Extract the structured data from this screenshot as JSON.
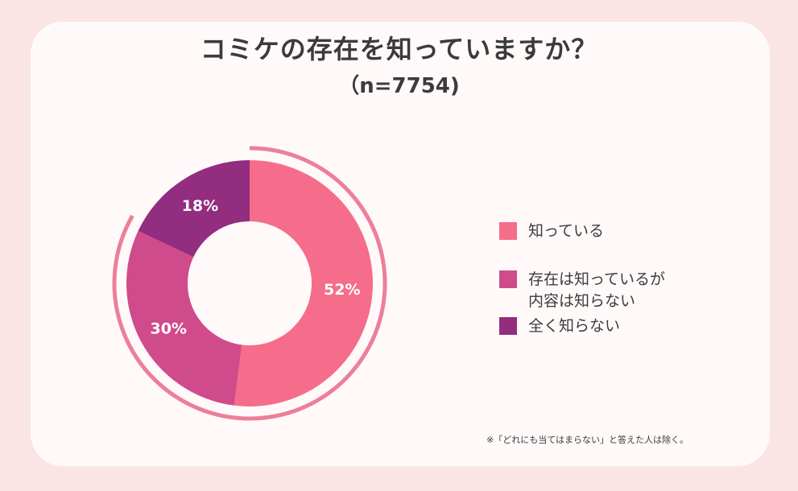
{
  "title": "コミケの存在を知っていますか？",
  "subtitle": "（n=7754)",
  "footnote": "※「どれにも当てはまらない」と答えた人は除く。",
  "chart_data": {
    "type": "pie",
    "title": "コミケの存在を知っていますか？",
    "subtitle": "（n=7754)",
    "categories": [
      "知っている",
      "存在は知っているが\n内容は知らない",
      "全く知らない"
    ],
    "values": [
      52,
      30,
      18
    ],
    "labels": [
      "52%",
      "30%",
      "18%"
    ],
    "colors": [
      "#f56d8a",
      "#d04b8b",
      "#922d80"
    ],
    "legend_position": "right"
  },
  "colors": {
    "background": "#fbe4e4",
    "card": "#fffaf9",
    "outer_ring": "#ec7f9a"
  }
}
